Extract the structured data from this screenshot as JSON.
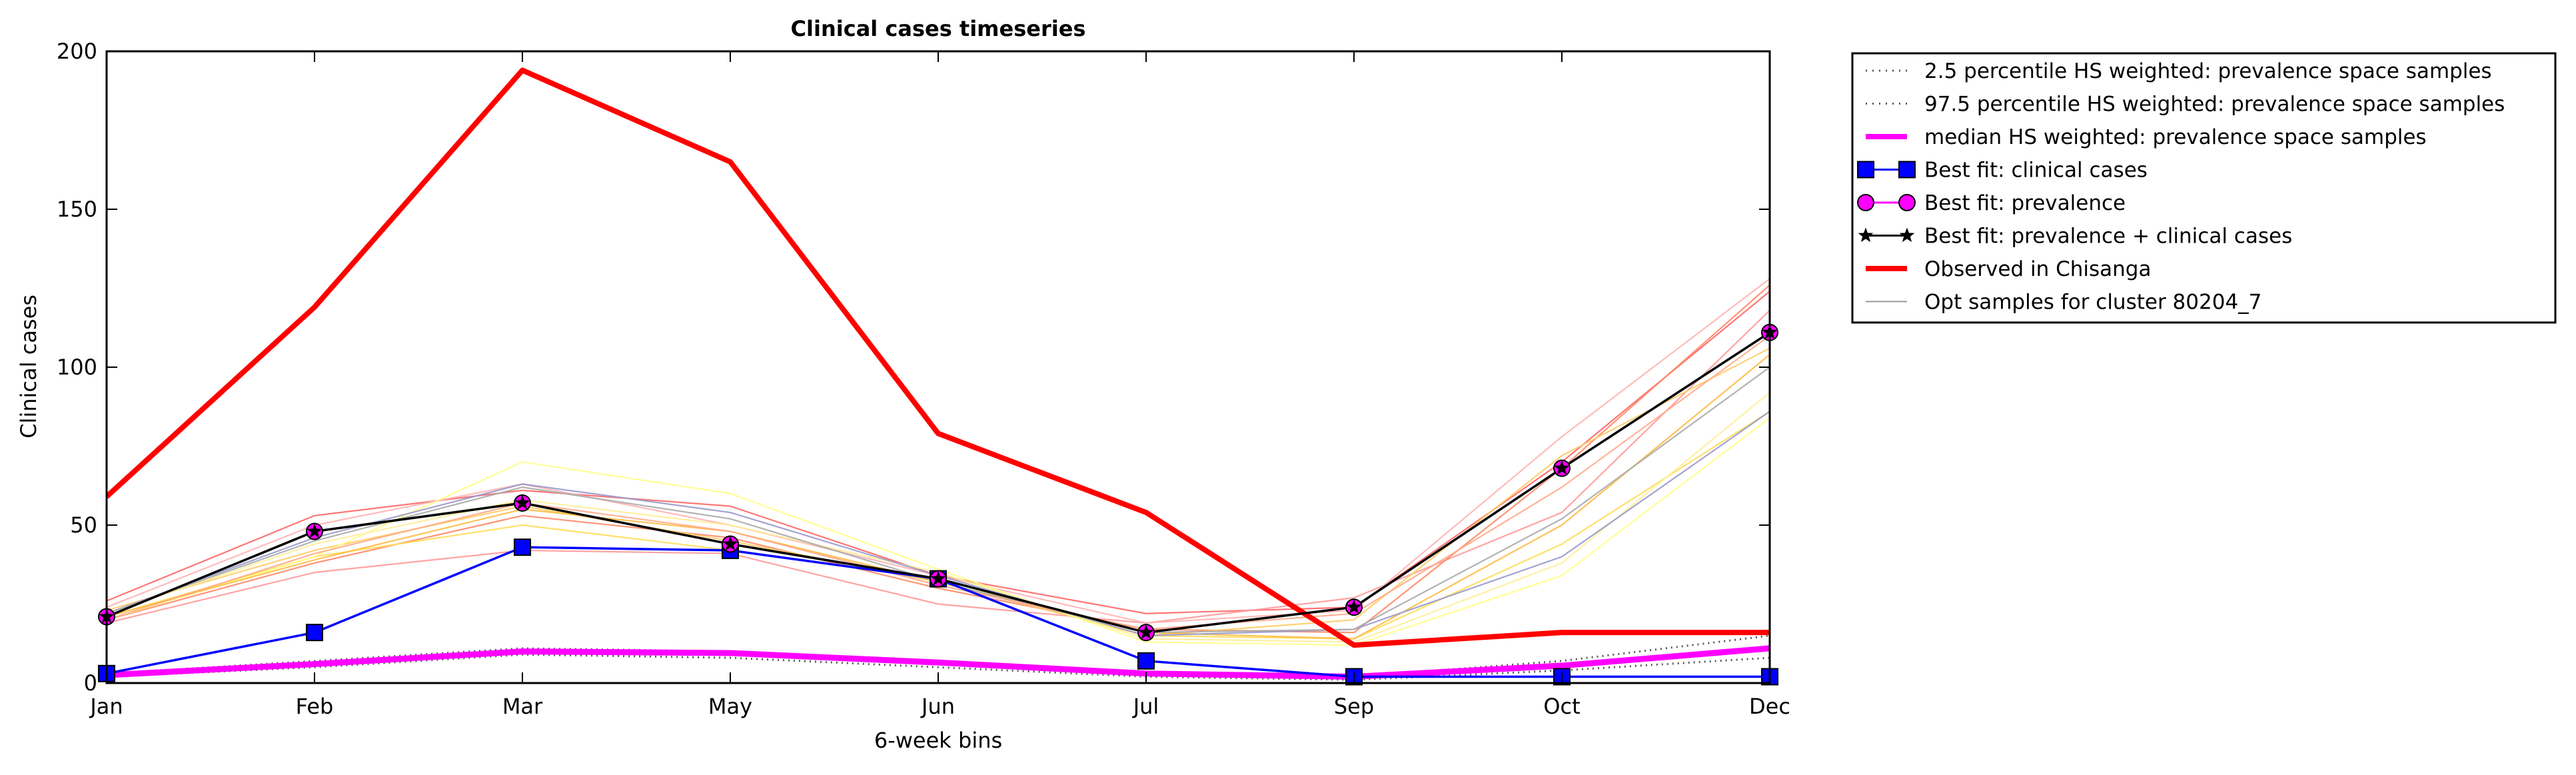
{
  "chart_data": {
    "type": "line",
    "title": "Clinical cases timeseries",
    "xlabel": "6-week bins",
    "ylabel": "Clinical cases",
    "categories": [
      "Jan",
      "Feb",
      "Mar",
      "May",
      "Jun",
      "Jul",
      "Sep",
      "Oct",
      "Dec"
    ],
    "ylim": [
      0,
      200
    ],
    "yticks": [
      0,
      50,
      100,
      150,
      200
    ],
    "grid": false,
    "legend_position": "outside right, top",
    "series": [
      {
        "name": "2.5 percentile HS weighted: prevalence space samples",
        "style": "dotted",
        "color": "#555555",
        "values": [
          2,
          5,
          9,
          8,
          5,
          2,
          1,
          4,
          8
        ]
      },
      {
        "name": "97.5 percentile HS weighted: prevalence space samples",
        "style": "dotted",
        "color": "#555555",
        "values": [
          3,
          7,
          11,
          10,
          7,
          3,
          2,
          7,
          15
        ]
      },
      {
        "name": "median HS weighted: prevalence space samples",
        "style": "solid-thick",
        "color": "#ff00ff",
        "values": [
          2.5,
          6,
          10,
          9.5,
          6.5,
          3,
          2,
          5.5,
          11
        ]
      },
      {
        "name": "Best fit: clinical cases",
        "style": "line-square",
        "color": "#0000ff",
        "values": [
          3,
          16,
          43,
          42,
          33,
          7,
          2,
          2,
          2
        ]
      },
      {
        "name": "Best fit: prevalence",
        "style": "line-circle",
        "color": "#ff00ff",
        "values": [
          21,
          48,
          57,
          44,
          33,
          16,
          24,
          68,
          111
        ]
      },
      {
        "name": "Best fit: prevalence + clinical cases",
        "style": "line-star",
        "color": "#000000",
        "values": [
          21,
          48,
          57,
          44,
          33,
          16,
          24,
          68,
          111
        ]
      },
      {
        "name": "Observed in Chisanga",
        "style": "solid-thick",
        "color": "#ff0000",
        "values": [
          59,
          119,
          194,
          165,
          79,
          54,
          12,
          16,
          16
        ]
      },
      {
        "name": "Opt samples for cluster 80204_7",
        "style": "thin",
        "color": "#999999",
        "values": [
          22,
          45,
          62,
          52,
          32,
          16,
          17,
          52,
          100
        ]
      }
    ],
    "opt_samples": [
      {
        "color": "#ff6666",
        "values": [
          26,
          53,
          61,
          56,
          34,
          22,
          24,
          70,
          124
        ]
      },
      {
        "color": "#ff9999",
        "values": [
          19,
          35,
          42,
          41,
          25,
          19,
          27,
          54,
          118
        ]
      },
      {
        "color": "#ffb3b3",
        "values": [
          24,
          50,
          63,
          50,
          34,
          19,
          23,
          78,
          128
        ]
      },
      {
        "color": "#ff8866",
        "values": [
          20,
          38,
          53,
          46,
          30,
          17,
          16,
          68,
          126
        ]
      },
      {
        "color": "#ffcc66",
        "values": [
          23,
          42,
          56,
          45,
          32,
          15,
          20,
          72,
          106
        ]
      },
      {
        "color": "#ffdd55",
        "values": [
          21,
          40,
          50,
          42,
          33,
          15,
          14,
          44,
          86
        ]
      },
      {
        "color": "#ffff88",
        "values": [
          20,
          40,
          70,
          60,
          36,
          13,
          12,
          34,
          84
        ]
      },
      {
        "color": "#ffee99",
        "values": [
          22,
          44,
          58,
          50,
          35,
          14,
          13,
          38,
          92
        ]
      },
      {
        "color": "#ffbb44",
        "values": [
          21,
          39,
          55,
          48,
          32,
          16,
          14,
          50,
          104
        ]
      },
      {
        "color": "#9999cc",
        "values": [
          22,
          46,
          63,
          54,
          34,
          15,
          17,
          40,
          86
        ]
      },
      {
        "color": "#aaaaaa",
        "values": [
          22,
          45,
          62,
          52,
          32,
          16,
          17,
          52,
          100
        ]
      },
      {
        "color": "#ffaa88",
        "values": [
          20,
          41,
          57,
          48,
          31,
          17,
          22,
          62,
          110
        ]
      }
    ]
  }
}
